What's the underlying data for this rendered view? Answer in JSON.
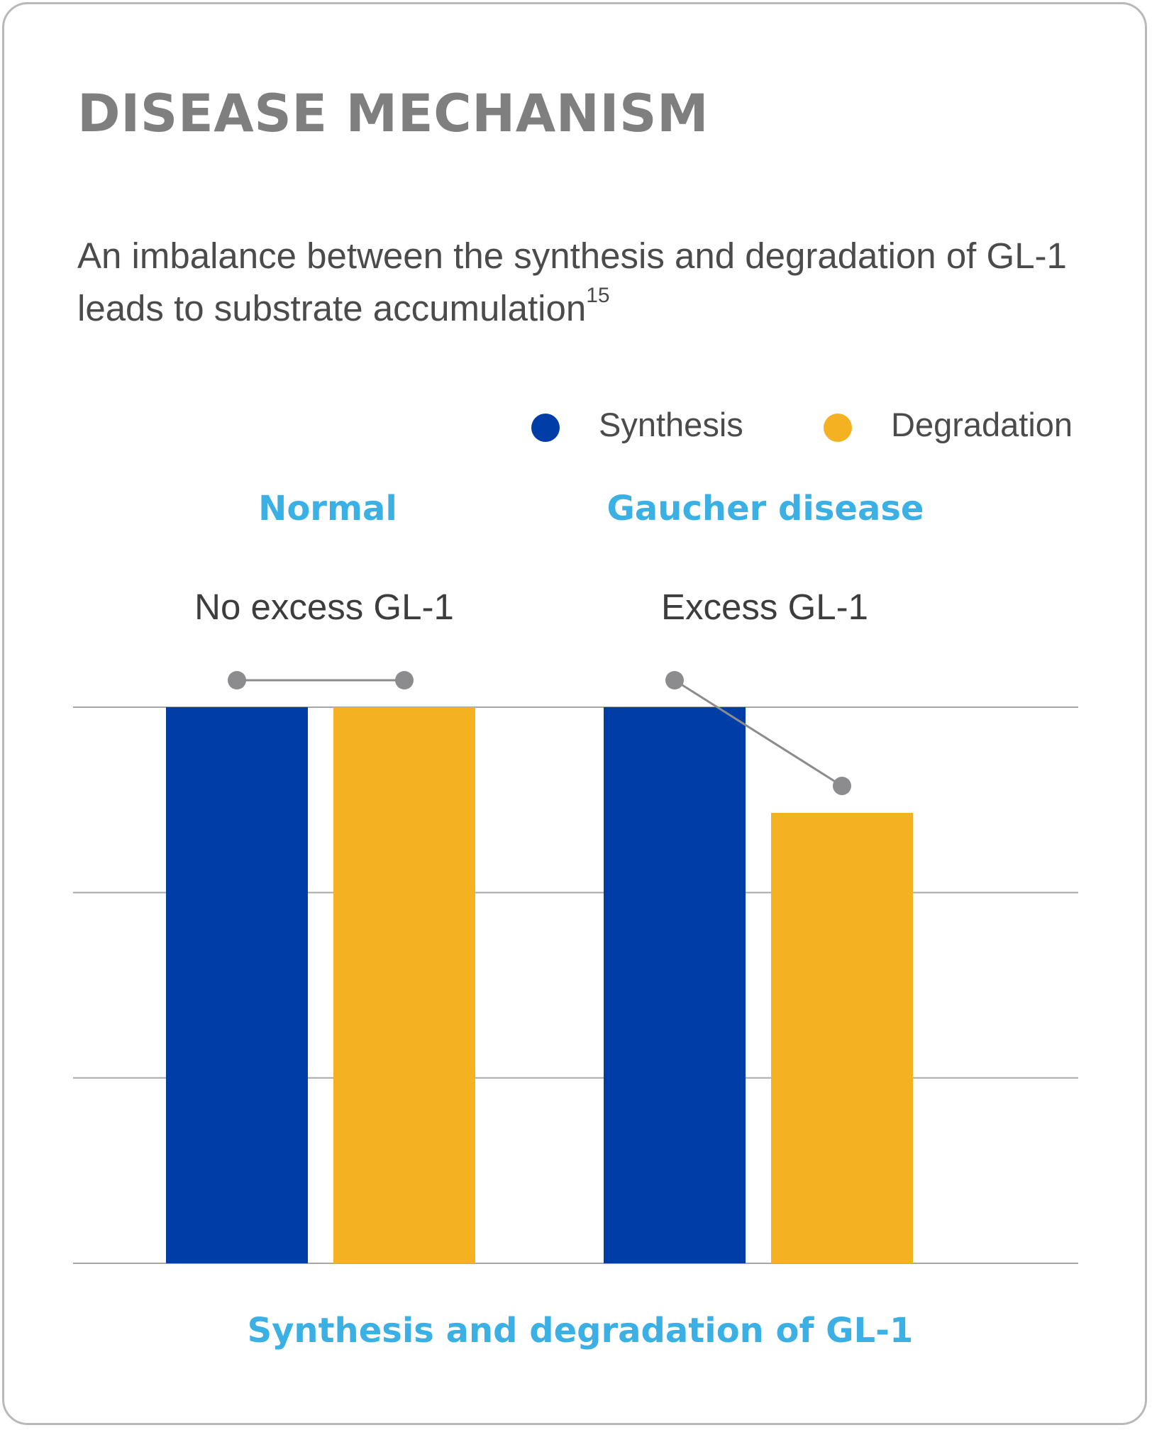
{
  "title": "DISEASE MECHANISM",
  "subtitle": "An imbalance between the synthesis and degradation of GL-1 leads to substrate accumulation",
  "subtitle_ref": "15",
  "colors": {
    "synthesis": "#003da6",
    "degradation": "#f4b122",
    "accent_text": "#3ab0e4",
    "connector": "#8c8c8e",
    "gridline": "#a8a8a8"
  },
  "legend": [
    {
      "label": "Synthesis",
      "color": "#003da6"
    },
    {
      "label": "Degradation",
      "color": "#f4b122"
    }
  ],
  "groups": [
    {
      "title": "Normal",
      "note": "No excess GL-1"
    },
    {
      "title": "Gaucher disease",
      "note": "Excess GL-1"
    }
  ],
  "chart_data": {
    "type": "bar",
    "categories": [
      "Normal",
      "Gaucher disease"
    ],
    "series": [
      {
        "name": "Synthesis",
        "values": [
          1.0,
          1.0
        ]
      },
      {
        "name": "Degradation",
        "values": [
          1.0,
          0.81
        ]
      }
    ],
    "xlabel": "Synthesis and degradation of GL-1",
    "ylabel": "",
    "ylim": [
      0,
      1
    ],
    "grid": true,
    "legend_position": "top-right",
    "annotations": [
      "No excess GL-1",
      "Excess GL-1"
    ]
  }
}
